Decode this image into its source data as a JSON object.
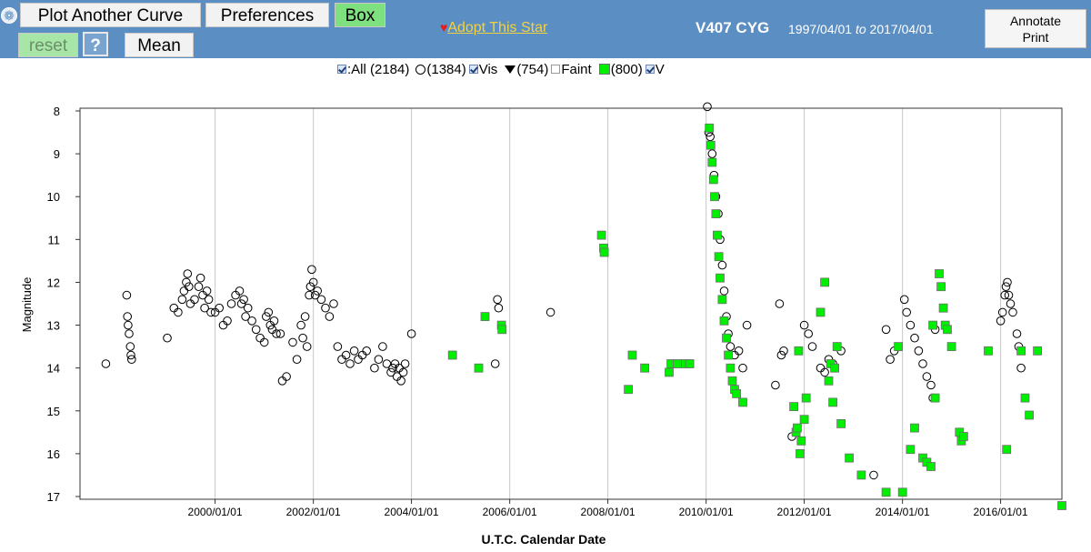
{
  "toolbar": {
    "plot_another_label": "Plot Another Curve",
    "preferences_label": "Preferences",
    "box_label": "Box",
    "reset_label": "reset",
    "help_label": "?",
    "mean_label": "Mean",
    "adopt_label": "Adopt This Star",
    "annotate_label": "Annotate",
    "print_label": "Print"
  },
  "header": {
    "star_name": "V407 CYG",
    "date_from": "1997/04/01",
    "to_word": "to",
    "date_to": "2017/04/01"
  },
  "legend": {
    "all_label": ":All (2184)",
    "vis_count": "(1384)",
    "vis_label": "Vis",
    "faint_count": "(754)",
    "faint_label": "Faint",
    "v_count": "(800)",
    "v_label": "V"
  },
  "colors": {
    "toolbar_bg": "#5b8fc4",
    "v_marker": "#00ee00",
    "adopt_link": "#f4d23c",
    "heart": "#e41d1d"
  },
  "chart_data": {
    "type": "scatter",
    "xlabel": "U.T.C. Calendar Date",
    "ylabel": "Magnitude",
    "xlim": [
      "1997/04/01",
      "2017/04/01"
    ],
    "ylim": [
      17.0,
      8.0
    ],
    "y_inverted": true,
    "grid": true,
    "x_ticks": [
      "2000/01/01",
      "2002/01/01",
      "2004/01/01",
      "2006/01/01",
      "2008/01/01",
      "2010/01/01",
      "2012/01/01",
      "2014/01/01",
      "2016/01/01"
    ],
    "y_ticks": [
      8,
      9,
      10,
      11,
      12,
      13,
      14,
      15,
      16,
      17
    ],
    "series": [
      {
        "name": "Vis",
        "marker": "open-circle",
        "points": [
          [
            "1997/10/10",
            13.9
          ],
          [
            "1998/03/15",
            12.3
          ],
          [
            "1998/03/20",
            12.8
          ],
          [
            "1998/03/25",
            13.0
          ],
          [
            "1998/04/01",
            13.2
          ],
          [
            "1998/04/10",
            13.5
          ],
          [
            "1998/04/15",
            13.7
          ],
          [
            "1998/04/20",
            13.8
          ],
          [
            "1999/01/10",
            13.3
          ],
          [
            "1999/03/01",
            12.6
          ],
          [
            "1999/04/01",
            12.7
          ],
          [
            "1999/05/01",
            12.4
          ],
          [
            "1999/05/15",
            12.2
          ],
          [
            "1999/06/01",
            12.0
          ],
          [
            "1999/06/10",
            11.8
          ],
          [
            "1999/06/20",
            12.1
          ],
          [
            "1999/07/01",
            12.5
          ],
          [
            "1999/08/01",
            12.4
          ],
          [
            "1999/09/01",
            12.1
          ],
          [
            "1999/09/15",
            11.9
          ],
          [
            "1999/10/01",
            12.3
          ],
          [
            "1999/10/15",
            12.6
          ],
          [
            "1999/11/01",
            12.2
          ],
          [
            "1999/11/15",
            12.4
          ],
          [
            "1999/12/01",
            12.7
          ],
          [
            "2000/01/01",
            12.7
          ],
          [
            "2000/02/01",
            12.6
          ],
          [
            "2000/03/01",
            13.0
          ],
          [
            "2000/04/01",
            12.9
          ],
          [
            "2000/05/01",
            12.5
          ],
          [
            "2000/06/01",
            12.3
          ],
          [
            "2000/07/01",
            12.2
          ],
          [
            "2000/07/15",
            12.5
          ],
          [
            "2000/08/01",
            12.4
          ],
          [
            "2000/08/15",
            12.8
          ],
          [
            "2000/09/01",
            12.6
          ],
          [
            "2000/10/01",
            12.9
          ],
          [
            "2000/11/01",
            13.1
          ],
          [
            "2000/12/01",
            13.3
          ],
          [
            "2001/01/01",
            13.4
          ],
          [
            "2001/01/15",
            12.8
          ],
          [
            "2001/02/01",
            12.7
          ],
          [
            "2001/02/15",
            13.0
          ],
          [
            "2001/03/01",
            13.1
          ],
          [
            "2001/03/15",
            12.9
          ],
          [
            "2001/04/01",
            13.2
          ],
          [
            "2001/05/01",
            13.2
          ],
          [
            "2001/05/15",
            14.3
          ],
          [
            "2001/06/15",
            14.2
          ],
          [
            "2001/08/01",
            13.4
          ],
          [
            "2001/09/01",
            13.8
          ],
          [
            "2001/10/01",
            13.0
          ],
          [
            "2001/10/15",
            13.3
          ],
          [
            "2001/11/01",
            12.8
          ],
          [
            "2001/11/15",
            13.5
          ],
          [
            "2001/12/01",
            12.3
          ],
          [
            "2001/12/10",
            12.1
          ],
          [
            "2001/12/20",
            11.7
          ],
          [
            "2002/01/01",
            12.0
          ],
          [
            "2002/01/15",
            12.3
          ],
          [
            "2002/02/01",
            12.2
          ],
          [
            "2002/03/01",
            12.4
          ],
          [
            "2002/04/01",
            12.6
          ],
          [
            "2002/05/01",
            12.8
          ],
          [
            "2002/06/01",
            12.5
          ],
          [
            "2002/07/01",
            13.5
          ],
          [
            "2002/08/01",
            13.8
          ],
          [
            "2002/09/01",
            13.7
          ],
          [
            "2002/10/01",
            13.9
          ],
          [
            "2002/11/01",
            13.6
          ],
          [
            "2002/12/01",
            13.8
          ],
          [
            "2003/01/01",
            13.7
          ],
          [
            "2003/02/01",
            13.6
          ],
          [
            "2003/04/01",
            14.0
          ],
          [
            "2003/05/01",
            13.8
          ],
          [
            "2003/06/01",
            13.5
          ],
          [
            "2003/07/01",
            13.9
          ],
          [
            "2003/08/01",
            14.1
          ],
          [
            "2003/08/15",
            14.0
          ],
          [
            "2003/09/01",
            13.9
          ],
          [
            "2003/09/15",
            14.2
          ],
          [
            "2003/10/01",
            14.0
          ],
          [
            "2003/10/15",
            14.3
          ],
          [
            "2003/11/01",
            14.1
          ],
          [
            "2003/11/15",
            13.9
          ],
          [
            "2004/01/01",
            13.2
          ],
          [
            "2005/09/15",
            13.9
          ],
          [
            "2005/10/01",
            12.4
          ],
          [
            "2005/10/10",
            12.6
          ],
          [
            "2006/11/01",
            12.7
          ],
          [
            "2010/01/10",
            7.9
          ],
          [
            "2010/01/20",
            8.5
          ],
          [
            "2010/02/01",
            8.6
          ],
          [
            "2010/02/15",
            9.0
          ],
          [
            "2010/03/01",
            9.5
          ],
          [
            "2010/03/15",
            10.0
          ],
          [
            "2010/04/01",
            10.4
          ],
          [
            "2010/04/15",
            11.0
          ],
          [
            "2010/05/01",
            11.6
          ],
          [
            "2010/05/15",
            12.2
          ],
          [
            "2010/06/01",
            12.8
          ],
          [
            "2010/06/15",
            13.2
          ],
          [
            "2010/07/01",
            13.5
          ],
          [
            "2010/08/01",
            13.7
          ],
          [
            "2010/09/01",
            13.6
          ],
          [
            "2010/10/01",
            14.0
          ],
          [
            "2010/11/01",
            13.0
          ],
          [
            "2011/06/01",
            14.4
          ],
          [
            "2011/07/01",
            12.5
          ],
          [
            "2011/07/15",
            13.7
          ],
          [
            "2011/08/01",
            13.6
          ],
          [
            "2011/10/01",
            15.6
          ],
          [
            "2012/01/01",
            13.0
          ],
          [
            "2012/02/01",
            13.2
          ],
          [
            "2012/03/01",
            13.5
          ],
          [
            "2012/05/01",
            14.0
          ],
          [
            "2012/06/01",
            14.1
          ],
          [
            "2012/07/01",
            13.8
          ],
          [
            "2012/08/01",
            13.9
          ],
          [
            "2012/09/01",
            13.5
          ],
          [
            "2012/10/01",
            13.6
          ],
          [
            "2013/06/01",
            16.5
          ],
          [
            "2013/09/01",
            13.1
          ],
          [
            "2013/10/01",
            13.8
          ],
          [
            "2013/11/01",
            13.6
          ],
          [
            "2014/01/15",
            12.4
          ],
          [
            "2014/02/01",
            12.7
          ],
          [
            "2014/03/01",
            13.0
          ],
          [
            "2014/04/01",
            13.3
          ],
          [
            "2014/05/01",
            13.6
          ],
          [
            "2014/06/01",
            13.9
          ],
          [
            "2014/07/01",
            14.2
          ],
          [
            "2014/08/01",
            14.4
          ],
          [
            "2014/08/15",
            14.7
          ],
          [
            "2014/09/01",
            13.1
          ],
          [
            "2016/01/01",
            12.9
          ],
          [
            "2016/01/15",
            12.7
          ],
          [
            "2016/02/01",
            12.3
          ],
          [
            "2016/02/10",
            12.1
          ],
          [
            "2016/02/20",
            12.0
          ],
          [
            "2016/03/01",
            12.3
          ],
          [
            "2016/03/15",
            12.5
          ],
          [
            "2016/04/01",
            12.7
          ],
          [
            "2016/05/01",
            13.2
          ],
          [
            "2016/05/15",
            13.5
          ],
          [
            "2016/06/01",
            14.0
          ]
        ]
      },
      {
        "name": "V",
        "marker": "green-square",
        "points": [
          [
            "2004/11/01",
            13.7
          ],
          [
            "2005/05/15",
            14.0
          ],
          [
            "2005/07/01",
            12.8
          ],
          [
            "2005/11/01",
            13.0
          ],
          [
            "2005/11/05",
            13.1
          ],
          [
            "2007/11/15",
            10.9
          ],
          [
            "2007/12/01",
            11.2
          ],
          [
            "2007/12/05",
            11.3
          ],
          [
            "2008/06/01",
            14.5
          ],
          [
            "2008/07/01",
            13.7
          ],
          [
            "2008/10/01",
            14.0
          ],
          [
            "2009/04/01",
            14.1
          ],
          [
            "2009/04/15",
            13.9
          ],
          [
            "2009/06/01",
            13.9
          ],
          [
            "2009/08/01",
            13.9
          ],
          [
            "2009/09/01",
            13.9
          ],
          [
            "2010/01/25",
            8.4
          ],
          [
            "2010/02/05",
            8.8
          ],
          [
            "2010/02/15",
            9.2
          ],
          [
            "2010/02/25",
            9.6
          ],
          [
            "2010/03/05",
            10.0
          ],
          [
            "2010/03/15",
            10.4
          ],
          [
            "2010/03/25",
            10.9
          ],
          [
            "2010/04/05",
            11.4
          ],
          [
            "2010/04/15",
            11.9
          ],
          [
            "2010/05/01",
            12.4
          ],
          [
            "2010/05/15",
            12.9
          ],
          [
            "2010/06/01",
            13.3
          ],
          [
            "2010/06/15",
            13.7
          ],
          [
            "2010/07/01",
            14.0
          ],
          [
            "2010/07/15",
            14.3
          ],
          [
            "2010/08/01",
            14.5
          ],
          [
            "2010/08/15",
            14.6
          ],
          [
            "2010/10/01",
            14.8
          ],
          [
            "2011/10/15",
            14.9
          ],
          [
            "2011/11/01",
            15.5
          ],
          [
            "2011/11/10",
            15.4
          ],
          [
            "2011/11/20",
            13.6
          ],
          [
            "2011/12/01",
            16.0
          ],
          [
            "2011/12/10",
            15.7
          ],
          [
            "2012/01/01",
            15.2
          ],
          [
            "2012/01/15",
            14.7
          ],
          [
            "2012/05/01",
            12.7
          ],
          [
            "2012/06/01",
            12.0
          ],
          [
            "2012/07/01",
            14.3
          ],
          [
            "2012/07/15",
            13.9
          ],
          [
            "2012/08/01",
            14.8
          ],
          [
            "2012/08/15",
            14.0
          ],
          [
            "2012/09/01",
            13.5
          ],
          [
            "2012/10/01",
            15.3
          ],
          [
            "2012/12/01",
            16.1
          ],
          [
            "2013/03/01",
            16.5
          ],
          [
            "2013/09/01",
            16.9
          ],
          [
            "2013/12/01",
            13.5
          ],
          [
            "2014/01/01",
            16.9
          ],
          [
            "2014/03/01",
            15.9
          ],
          [
            "2014/04/01",
            15.4
          ],
          [
            "2014/06/01",
            16.1
          ],
          [
            "2014/07/01",
            16.2
          ],
          [
            "2014/08/01",
            16.3
          ],
          [
            "2014/08/15",
            13.0
          ],
          [
            "2014/09/01",
            14.7
          ],
          [
            "2014/10/01",
            11.8
          ],
          [
            "2014/10/15",
            12.1
          ],
          [
            "2014/11/01",
            12.6
          ],
          [
            "2014/11/15",
            13.0
          ],
          [
            "2014/12/01",
            13.1
          ],
          [
            "2015/01/01",
            13.5
          ],
          [
            "2015/03/01",
            15.5
          ],
          [
            "2015/03/15",
            15.7
          ],
          [
            "2015/04/01",
            15.6
          ],
          [
            "2015/10/01",
            13.6
          ],
          [
            "2016/02/15",
            15.9
          ],
          [
            "2016/06/01",
            13.6
          ],
          [
            "2016/07/01",
            14.7
          ],
          [
            "2016/08/01",
            15.1
          ],
          [
            "2016/10/01",
            13.6
          ],
          [
            "2017/04/01",
            17.3
          ]
        ]
      }
    ]
  }
}
